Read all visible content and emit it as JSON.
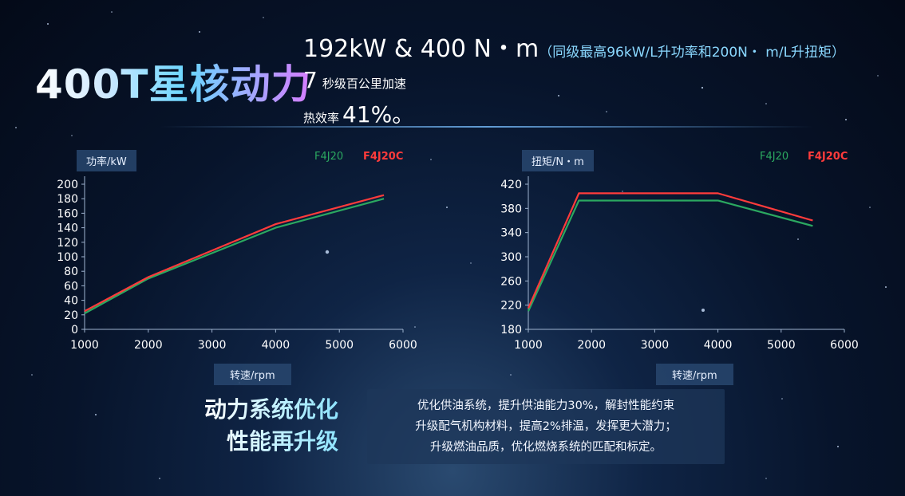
{
  "header": {
    "title": "400T星核动力",
    "spec_main": "192kW & 400 N・m",
    "spec_note": "（同级最高96kW/L升功率和200N・ m/L升扭矩）",
    "accel_value": "7",
    "accel_text": "秒级百公里加速",
    "efficiency_label": "热效率",
    "efficiency_value": "41%。"
  },
  "chart_data": [
    {
      "type": "line",
      "ylabel": "功率/kW",
      "xlabel": "转速/rpm",
      "xlim": [
        1000,
        6000
      ],
      "ylim": [
        0,
        200
      ],
      "x_ticks": [
        1000,
        2000,
        3000,
        4000,
        5000,
        6000
      ],
      "y_ticks": [
        0,
        20,
        40,
        60,
        80,
        100,
        120,
        140,
        160,
        180,
        200
      ],
      "legend": [
        "F4J20",
        "F4J20C"
      ],
      "legend_placement": "top-right",
      "grid": false,
      "series": [
        {
          "name": "F4J20",
          "color": "#2ba860",
          "x": [
            1000,
            2000,
            4000,
            5700
          ],
          "y": [
            22,
            70,
            140,
            180
          ]
        },
        {
          "name": "F4J20C",
          "color": "#ff3b3b",
          "x": [
            1000,
            2000,
            4000,
            5700
          ],
          "y": [
            25,
            72,
            145,
            185
          ]
        }
      ]
    },
    {
      "type": "line",
      "ylabel": "扭矩/N・m",
      "xlabel": "转速/rpm",
      "xlim": [
        1000,
        6000
      ],
      "ylim": [
        180,
        420
      ],
      "x_ticks": [
        1000,
        2000,
        3000,
        4000,
        5000,
        6000
      ],
      "y_ticks": [
        180,
        220,
        260,
        300,
        340,
        380,
        420
      ],
      "legend": [
        "F4J20",
        "F4J20C"
      ],
      "legend_placement": "top-right",
      "grid": false,
      "series": [
        {
          "name": "F4J20",
          "color": "#2ba860",
          "x": [
            1000,
            1800,
            4000,
            5500
          ],
          "y": [
            210,
            393,
            393,
            351
          ]
        },
        {
          "name": "F4J20C",
          "color": "#ff3b3b",
          "x": [
            1000,
            1800,
            4000,
            5500
          ],
          "y": [
            215,
            405,
            405,
            360
          ]
        }
      ]
    }
  ],
  "promo": {
    "title_line1": "动力系统优化",
    "title_line2": "性能再升级",
    "lines": [
      "优化供油系统，提升供油能力30%，解封性能约束",
      "升级配气机构材料，提高2%排温，发挥更大潜力；",
      "升级燃油品质，优化燃烧系统的匹配和标定。"
    ]
  }
}
